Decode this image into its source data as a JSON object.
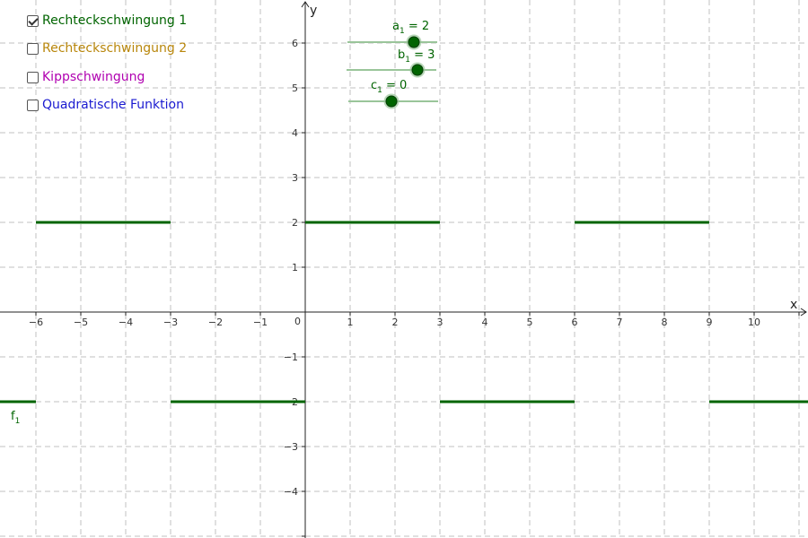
{
  "checkboxes": [
    {
      "label": "Rechteckschwingung 1",
      "checked": true,
      "color": "#006400"
    },
    {
      "label": "Rechteckschwingung 2",
      "checked": false,
      "color": "#b8860b"
    },
    {
      "label": "Kippschwingung",
      "checked": false,
      "color": "#b000b0"
    },
    {
      "label": "Quadratische Funktion",
      "checked": false,
      "color": "#1a1ad0"
    }
  ],
  "axes": {
    "x_label": "x",
    "y_label": "y",
    "origin_label": "0",
    "x_ticks": [
      "−6",
      "−5",
      "−4",
      "−3",
      "−2",
      "−1",
      "1",
      "2",
      "3",
      "4",
      "5",
      "6",
      "7",
      "8",
      "9",
      "10"
    ],
    "y_ticks": [
      "6",
      "5",
      "4",
      "3",
      "2",
      "1",
      "−1",
      "−2",
      "−3",
      "−4"
    ]
  },
  "sliders": [
    {
      "name": "a",
      "sub": "1",
      "value": "2",
      "label": "a₁ = 2"
    },
    {
      "name": "b",
      "sub": "1",
      "value": "3",
      "label": "b₁ = 3"
    },
    {
      "name": "c",
      "sub": "1",
      "value": "0",
      "label": "c₁ = 0"
    }
  ],
  "function_label": {
    "name": "f",
    "sub": "1"
  },
  "function_color": "#006400",
  "chart_data": {
    "type": "line",
    "series": [
      {
        "name": "f1",
        "segments": [
          {
            "x": [
              -7,
              -6
            ],
            "y": [
              -2,
              -2
            ]
          },
          {
            "x": [
              -6,
              -3
            ],
            "y": [
              2,
              2
            ]
          },
          {
            "x": [
              -3,
              0
            ],
            "y": [
              -2,
              -2
            ]
          },
          {
            "x": [
              0,
              3
            ],
            "y": [
              2,
              2
            ]
          },
          {
            "x": [
              3,
              6
            ],
            "y": [
              -2,
              -2
            ]
          },
          {
            "x": [
              6,
              9
            ],
            "y": [
              2,
              2
            ]
          },
          {
            "x": [
              9,
              11.2
            ],
            "y": [
              -2,
              -2
            ]
          }
        ]
      }
    ],
    "xlim": [
      -6.8,
      11.2
    ],
    "ylim": [
      -4.9,
      6.9
    ],
    "grid": true
  }
}
